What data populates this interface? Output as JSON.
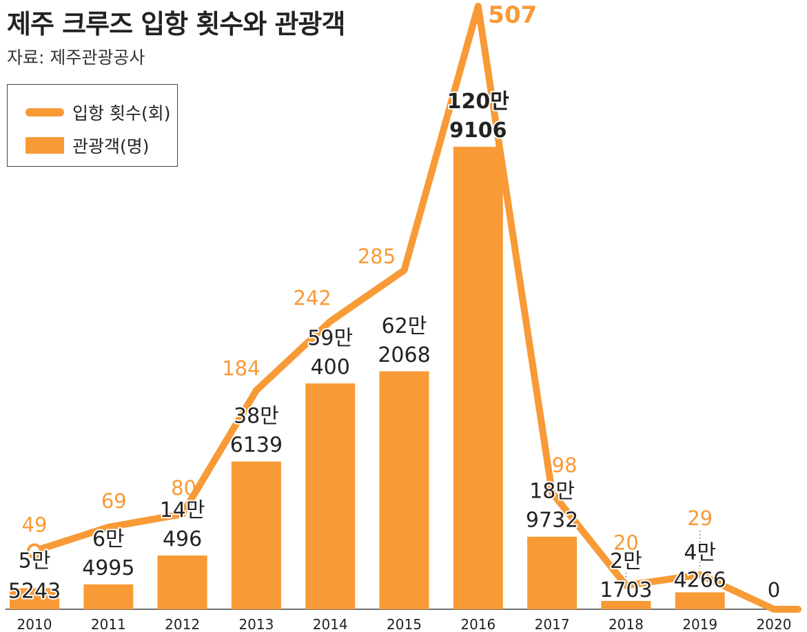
{
  "title": "제주 크루즈 입항 횟수와 관광객",
  "source": "자료: 제주관광공사",
  "legend": {
    "line_label": "입항 횟수(회)",
    "bar_label": "관광객(명)"
  },
  "colors": {
    "accent": "#F89A36",
    "text": "#222222"
  },
  "chart_data": {
    "type": "bar",
    "categories": [
      "2010",
      "2011",
      "2012",
      "2013",
      "2014",
      "2015",
      "2016",
      "2017",
      "2018",
      "2019",
      "2020"
    ],
    "series": [
      {
        "name": "관광객(명)",
        "type": "bar",
        "values": [
          55243,
          64995,
          140496,
          386139,
          590400,
          622068,
          1209106,
          189732,
          21703,
          44266,
          0
        ],
        "labels": [
          [
            "5만",
            "5243"
          ],
          [
            "6만",
            "4995"
          ],
          [
            "14만",
            "496"
          ],
          [
            "38만",
            "6139"
          ],
          [
            "59만",
            "400"
          ],
          [
            "62만",
            "2068"
          ],
          [
            "120만",
            "9106"
          ],
          [
            "18만",
            "9732"
          ],
          [
            "2만",
            "1703"
          ],
          [
            "4만",
            "4266"
          ],
          [
            "",
            ""
          ]
        ]
      },
      {
        "name": "입항 횟수(회)",
        "type": "line",
        "values": [
          49,
          69,
          80,
          184,
          242,
          285,
          507,
          98,
          20,
          29,
          0
        ],
        "labels": [
          "49",
          "69",
          "80",
          "184",
          "242",
          "285",
          "507",
          "98",
          "20",
          "29",
          "0"
        ]
      }
    ],
    "legend_position": "top-left",
    "grid": false
  }
}
